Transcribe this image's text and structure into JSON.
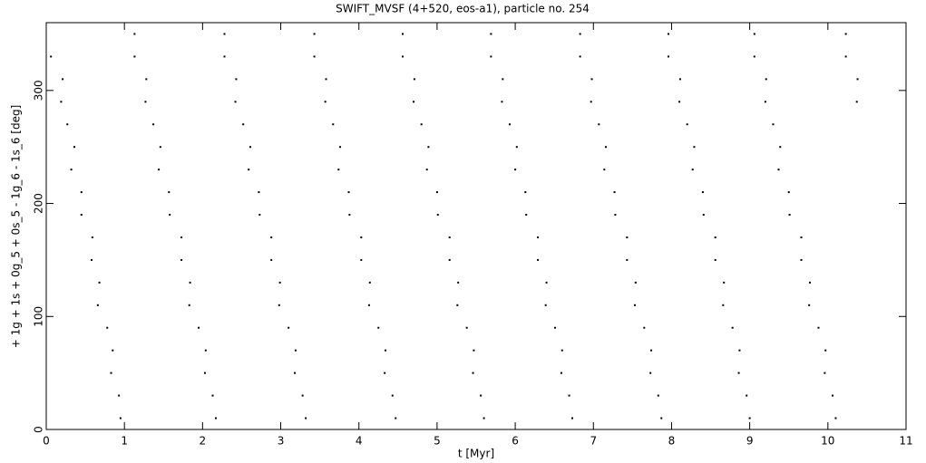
{
  "chart_data": {
    "type": "scatter",
    "title": "SWIFT_MVSF (4+520, eos-a1), particle no. 254",
    "x_label": "t [Myr]",
    "y_label": "+ 1g + 1s + 0g_5 + 0s_5 - 1g_6 - 1s_6 [deg]",
    "color": "#000000",
    "xlim": [
      0,
      11
    ],
    "xticks": [
      0,
      1,
      2,
      3,
      4,
      5,
      6,
      7,
      8,
      9,
      10,
      11
    ],
    "ylim": [
      0,
      360
    ],
    "yticks": [
      0,
      100,
      200,
      300
    ],
    "x": [
      0.06,
      0.21,
      0.19,
      0.27,
      0.36,
      0.32,
      0.45,
      0.45,
      0.59,
      0.58,
      0.68,
      0.66,
      0.78,
      0.85,
      0.83,
      0.93,
      0.95,
      1.13,
      1.13,
      1.28,
      1.27,
      1.37,
      1.46,
      1.44,
      1.57,
      1.58,
      1.73,
      1.73,
      1.84,
      1.83,
      1.95,
      2.04,
      2.03,
      2.13,
      2.17,
      2.28,
      2.28,
      2.43,
      2.42,
      2.52,
      2.61,
      2.59,
      2.72,
      2.73,
      2.88,
      2.88,
      2.99,
      2.98,
      3.1,
      3.19,
      3.18,
      3.28,
      3.32,
      3.43,
      3.43,
      3.58,
      3.57,
      3.67,
      3.76,
      3.74,
      3.87,
      3.88,
      4.03,
      4.03,
      4.14,
      4.13,
      4.25,
      4.34,
      4.33,
      4.43,
      4.47,
      4.56,
      4.56,
      4.71,
      4.7,
      4.8,
      4.89,
      4.87,
      5.0,
      5.01,
      5.16,
      5.16,
      5.27,
      5.26,
      5.38,
      5.47,
      5.46,
      5.56,
      5.6,
      5.69,
      5.69,
      5.84,
      5.83,
      5.93,
      6.02,
      6.0,
      6.13,
      6.14,
      6.29,
      6.29,
      6.4,
      6.39,
      6.51,
      6.6,
      6.59,
      6.69,
      6.73,
      6.83,
      6.83,
      6.98,
      6.97,
      7.07,
      7.16,
      7.14,
      7.27,
      7.28,
      7.43,
      7.43,
      7.54,
      7.53,
      7.65,
      7.74,
      7.73,
      7.83,
      7.87,
      7.96,
      7.96,
      8.11,
      8.1,
      8.2,
      8.29,
      8.27,
      8.4,
      8.41,
      8.56,
      8.56,
      8.67,
      8.66,
      8.78,
      8.87,
      8.86,
      8.96,
      9.0,
      9.06,
      9.06,
      9.21,
      9.2,
      9.3,
      9.39,
      9.37,
      9.5,
      9.51,
      9.66,
      9.66,
      9.77,
      9.76,
      9.88,
      9.97,
      9.96,
      10.06,
      10.1,
      10.23,
      10.23,
      10.38,
      10.37
    ],
    "y": [
      330,
      310,
      290,
      270,
      250,
      230,
      210,
      190,
      170,
      150,
      130,
      110,
      90,
      70,
      50,
      30,
      10,
      350,
      330,
      310,
      290,
      270,
      250,
      230,
      210,
      190,
      170,
      150,
      130,
      110,
      90,
      70,
      50,
      30,
      10,
      350,
      330,
      310,
      290,
      270,
      250,
      230,
      210,
      190,
      170,
      150,
      130,
      110,
      90,
      70,
      50,
      30,
      10,
      350,
      330,
      310,
      290,
      270,
      250,
      230,
      210,
      190,
      170,
      150,
      130,
      110,
      90,
      70,
      50,
      30,
      10,
      350,
      330,
      310,
      290,
      270,
      250,
      230,
      210,
      190,
      170,
      150,
      130,
      110,
      90,
      70,
      50,
      30,
      10,
      350,
      330,
      310,
      290,
      270,
      250,
      230,
      210,
      190,
      170,
      150,
      130,
      110,
      90,
      70,
      50,
      30,
      10,
      350,
      330,
      310,
      290,
      270,
      250,
      230,
      210,
      190,
      170,
      150,
      130,
      110,
      90,
      70,
      50,
      30,
      10,
      350,
      330,
      310,
      290,
      270,
      250,
      230,
      210,
      190,
      170,
      150,
      130,
      110,
      90,
      70,
      50,
      30,
      10,
      350,
      330,
      310,
      290,
      270,
      250,
      230,
      210,
      190,
      170,
      150,
      130,
      110,
      90,
      70,
      50,
      30,
      10,
      350,
      330,
      310,
      290
    ]
  }
}
